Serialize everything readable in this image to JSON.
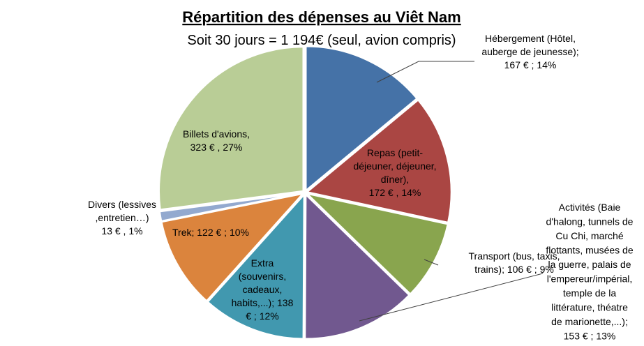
{
  "chart_data": {
    "type": "pie",
    "title": "Répartition des dépenses au Viêt Nam",
    "subtitle": "Soit 30 jours = 1 194€ (seul, avion compris)",
    "slices": [
      {
        "label": "Hébergement (Hôtel, auberge de jeunesse)",
        "value": 167,
        "percent": 14,
        "color": "#4572A7",
        "label_lines": [
          "Hébergement (Hôtel,",
          "auberge de jeunesse);",
          "167 € ; 14%"
        ]
      },
      {
        "label": "Repas (petit-déjeuner, déjeuner, dîner)",
        "value": 172,
        "percent": 14,
        "color": "#AA4643",
        "label_lines": [
          "Repas (petit-",
          "déjeuner, déjeuner,",
          "dîner),",
          "172 € ,  14%"
        ]
      },
      {
        "label": "Transport (bus, taxis, trains)",
        "value": 106,
        "percent": 9,
        "color": "#89A54E",
        "label_lines": [
          "Transport (bus, taxis,",
          "trains);   106 € ; 9%"
        ]
      },
      {
        "label": "Activités (Baie d'halong, tunnels de Cu Chi, marché flottants, musées de la guerre, palais de l'empereur/impérial, temple de la littérature, théatre de marionette,...)",
        "value": 153,
        "percent": 13,
        "color": "#71588F",
        "label_lines": [
          "Activités (Baie",
          "d'halong, tunnels de",
          "Cu Chi, marché",
          "flottants, musées de",
          "la guerre, palais de",
          "l'empereur/impérial,",
          "temple de la",
          "littérature, théatre",
          "de marionette,...);",
          "153 € ; 13%"
        ]
      },
      {
        "label": "Extra (souvenirs, cadeaux, habits,...)",
        "value": 138,
        "percent": 12,
        "color": "#4198AF",
        "label_lines": [
          "Extra",
          "(souvenirs,",
          "cadeaux,",
          "habits,...);    138",
          "€ ; 12%"
        ]
      },
      {
        "label": "Trek",
        "value": 122,
        "percent": 10,
        "color": "#DB843D",
        "label_lines": [
          "Trek;   122 € ; 10%"
        ]
      },
      {
        "label": "Divers (lessives, entretien...)",
        "value": 13,
        "percent": 1,
        "color": "#93A9CF",
        "label_lines": [
          "Divers (lessives",
          ",entretien…)",
          "13 € , 1%"
        ]
      },
      {
        "label": "Billets d'avions",
        "value": 323,
        "percent": 27,
        "color": "#B9CD96",
        "label_lines": [
          "Billets d'avions,",
          "323 € , 27%"
        ]
      }
    ],
    "total": 1194,
    "legend": "none"
  }
}
